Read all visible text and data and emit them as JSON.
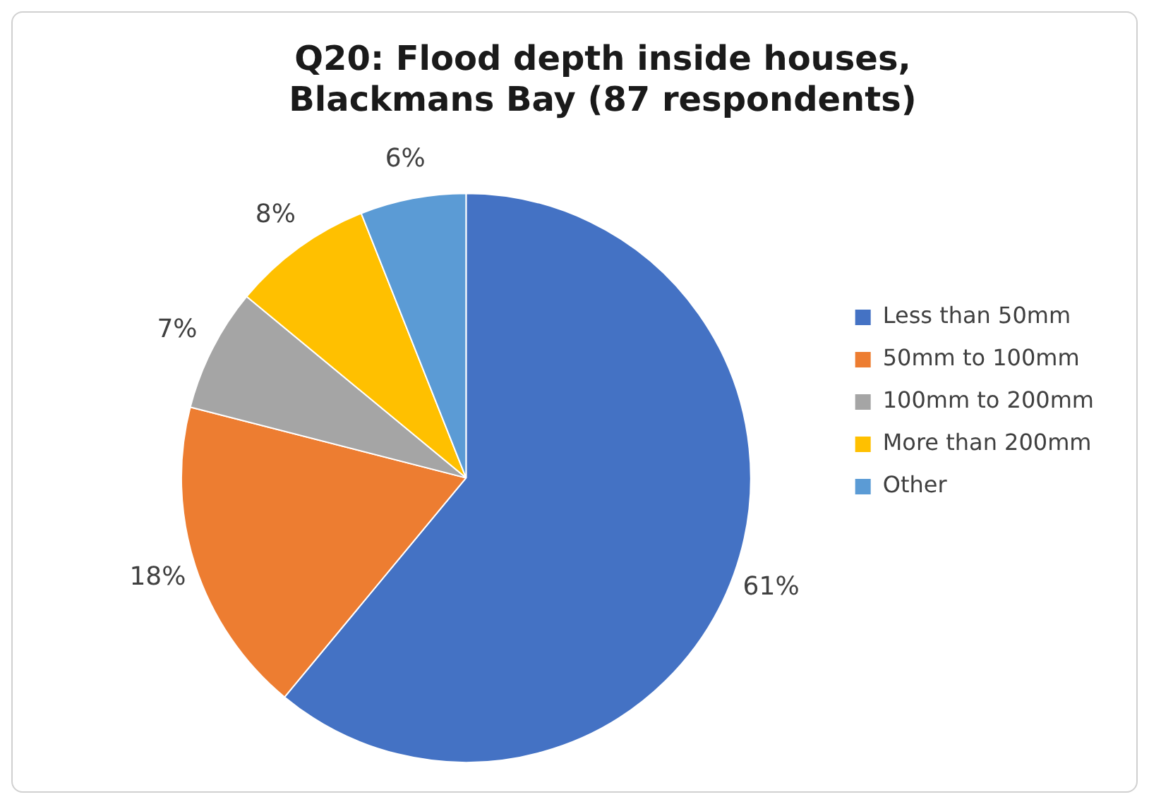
{
  "chart_data": {
    "type": "pie",
    "title": "Q20: Flood depth inside houses, Blackmans Bay (87 respondents)",
    "categories": [
      "Less than 50mm",
      "50mm to 100mm",
      "100mm to 200mm",
      "More than 200mm",
      "Other"
    ],
    "values": [
      61,
      18,
      7,
      8,
      6
    ],
    "colors": [
      "#4472c4",
      "#ed7d31",
      "#a5a5a5",
      "#ffc000",
      "#5b9bd5"
    ],
    "value_labels": [
      "61%",
      "18%",
      "7%",
      "8%",
      "6%"
    ],
    "legend": "right"
  }
}
